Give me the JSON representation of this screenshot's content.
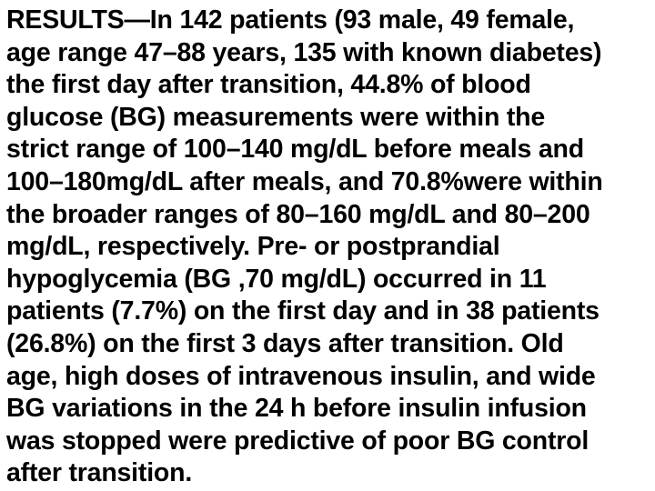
{
  "page": {
    "background_color": "#ffffff",
    "text_color": "#000000"
  },
  "abstract": {
    "section": "RESULTS",
    "lines": [
      "RESULTS—In 142 patients (93 male, 49 female,",
      "age range 47–88 years, 135 with known diabetes)",
      "the first day after transition, 44.8% of blood",
      "glucose (BG) measurements were within the",
      "strict range of 100–140 mg/dL before meals and",
      "100–180mg/dL after meals, and 70.8%were within",
      "the broader ranges of 80–160 mg/dL and 80–200",
      "mg/dL, respectively. Pre- or postprandial",
      "hypoglycemia (BG ,70 mg/dL) occurred in 11",
      "patients (7.7%) on the first day and in 38 patients",
      "(26.8%) on the first 3 days after transition. Old",
      "age, high doses of intravenous insulin, and wide",
      "BG variations in the 24 h before insulin infusion",
      "was stopped were predictive of poor BG control",
      "after transition."
    ]
  }
}
